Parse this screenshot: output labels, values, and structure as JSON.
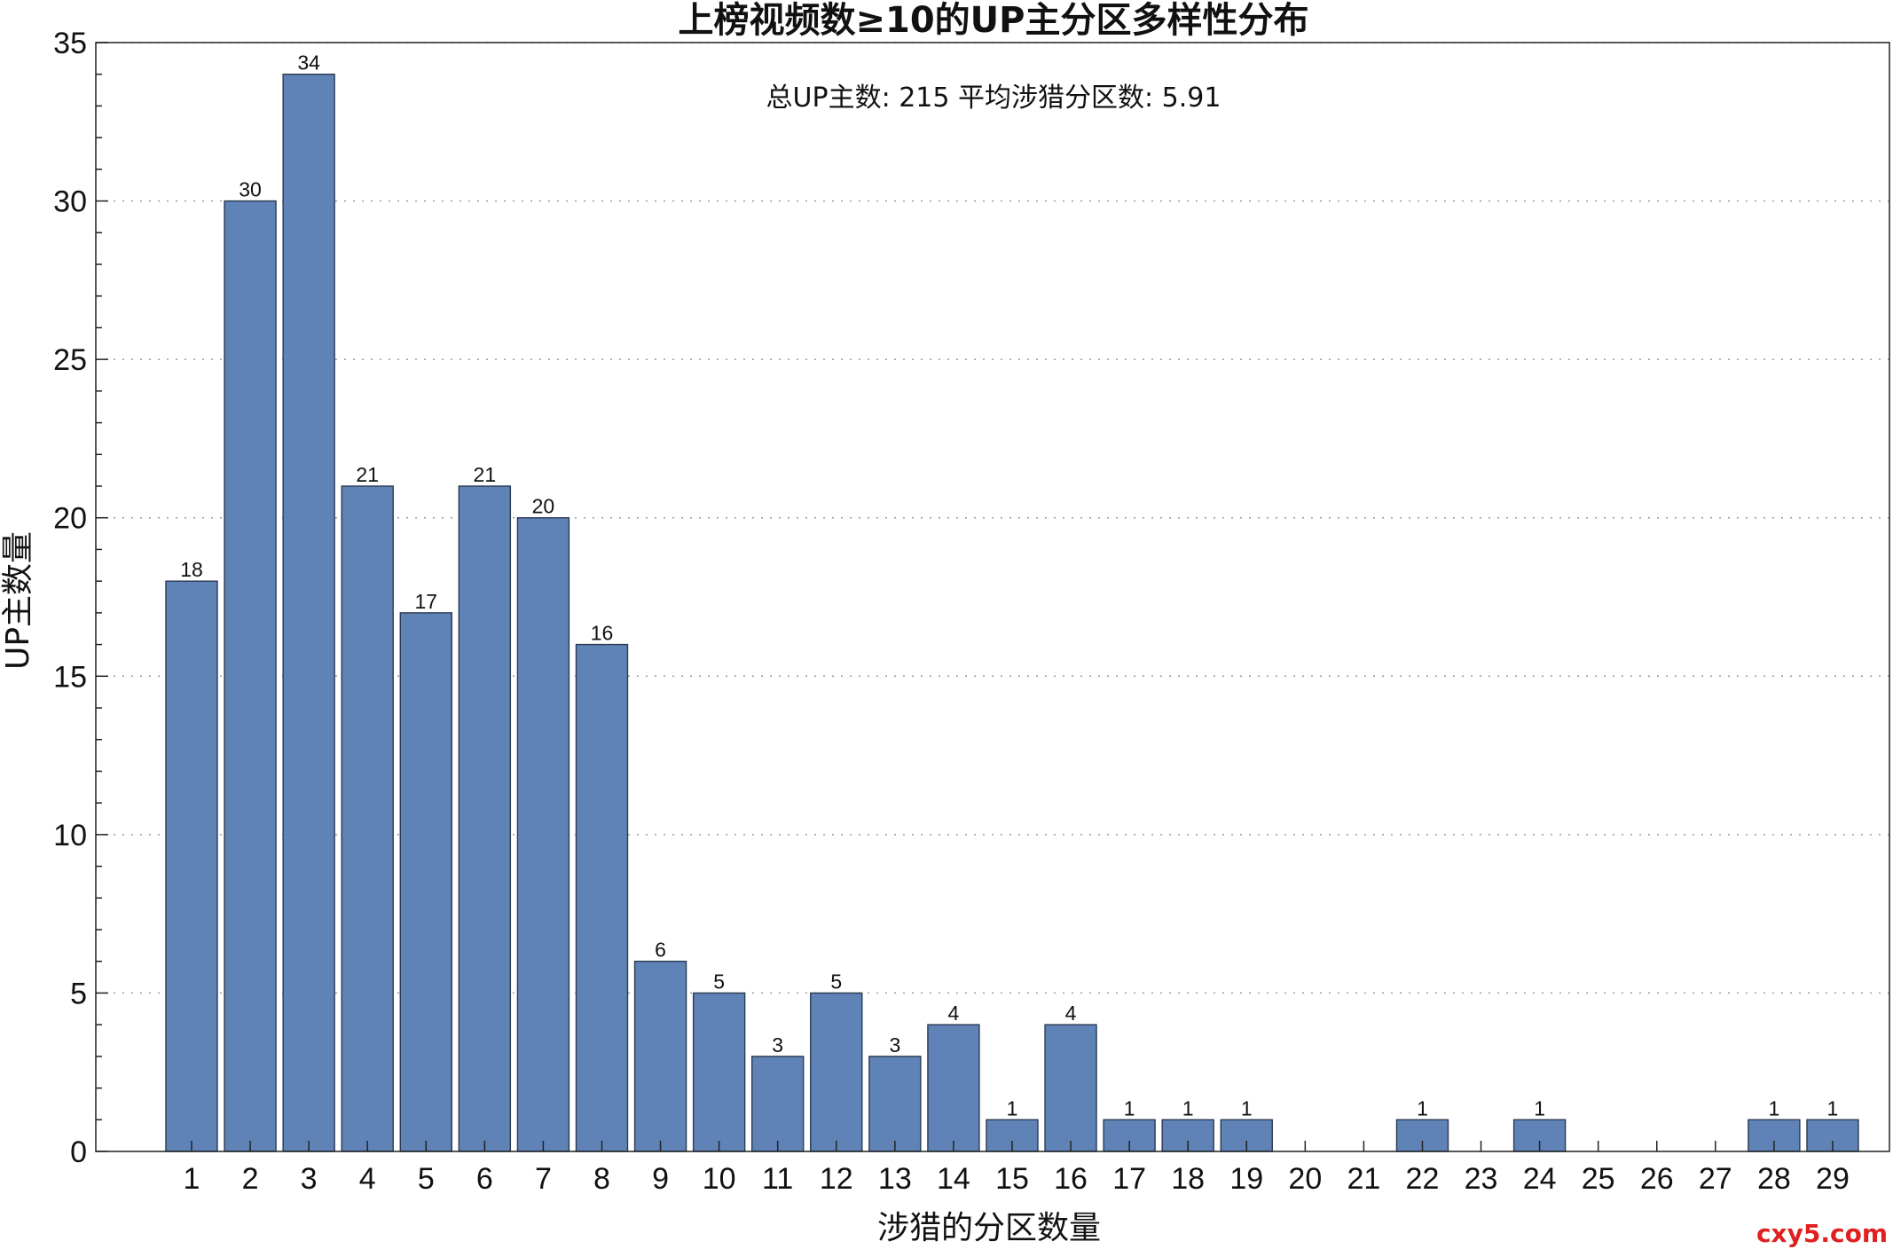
{
  "chart_data": {
    "type": "bar",
    "title": "上榜视频数≥10的UP主分区多样性分布",
    "annotation": "总UP主数: 215  平均涉猎分区数: 5.91",
    "xlabel": "涉猎的分区数量",
    "ylabel": "UP主数量",
    "categories": [
      "1",
      "2",
      "3",
      "4",
      "5",
      "6",
      "7",
      "8",
      "9",
      "10",
      "11",
      "12",
      "13",
      "14",
      "15",
      "16",
      "17",
      "18",
      "19",
      "20",
      "21",
      "22",
      "23",
      "24",
      "25",
      "26",
      "27",
      "28",
      "29"
    ],
    "values": [
      18,
      30,
      34,
      21,
      17,
      21,
      20,
      16,
      6,
      5,
      3,
      5,
      3,
      4,
      1,
      4,
      1,
      1,
      1,
      0,
      0,
      1,
      0,
      1,
      0,
      0,
      0,
      1,
      1
    ],
    "ylim": [
      0,
      35
    ],
    "yticks": [
      0,
      5,
      10,
      15,
      20,
      25,
      30,
      35
    ],
    "grid": "horizontal dotted",
    "bar_color": "#5f83b6",
    "data_labels": true
  },
  "watermark": "cxy5.com"
}
